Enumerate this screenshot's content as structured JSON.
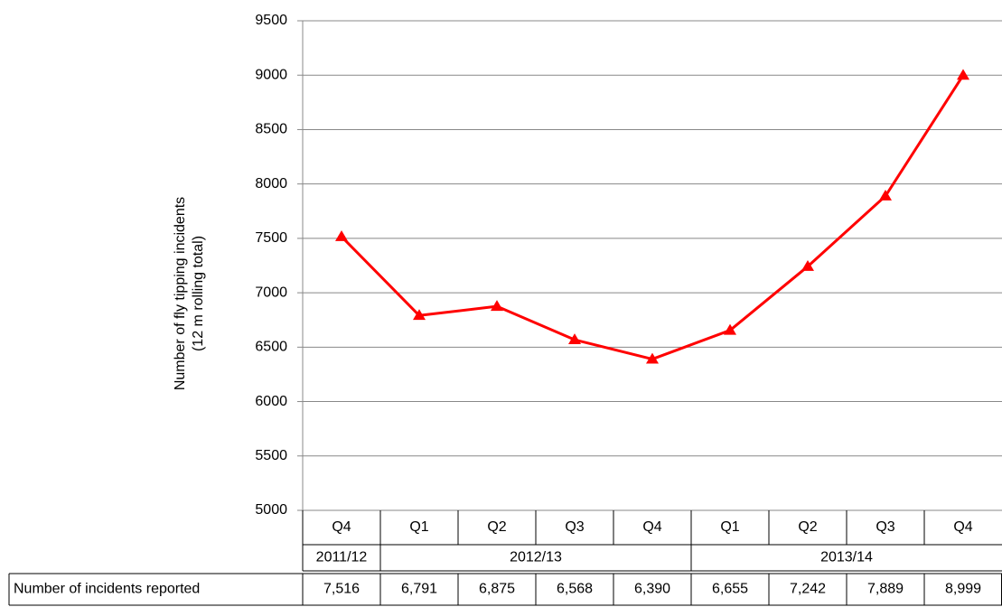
{
  "chart_data": {
    "type": "line",
    "y_label": [
      "Number of  fly tipping incidents",
      "(12 m rolling total)"
    ],
    "categories": [
      "Q4",
      "Q1",
      "Q2",
      "Q3",
      "Q4",
      "Q1",
      "Q2",
      "Q3",
      "Q4"
    ],
    "category_years": [
      "2011/12",
      "2012/13",
      null,
      null,
      null,
      "2013/14",
      null,
      null,
      null
    ],
    "series": [
      {
        "name": "Number of incidents reported",
        "color": "#ff0000",
        "values": [
          7516,
          6791,
          6875,
          6568,
          6390,
          6655,
          7242,
          7889,
          8999
        ],
        "value_labels": [
          "7,516",
          "6,791",
          "6,875",
          "6,568",
          "6,390",
          "6,655",
          "7,242",
          "7,889",
          "8,999"
        ]
      }
    ],
    "ylim": [
      5000,
      9500
    ],
    "yticks": [
      5000,
      5500,
      6000,
      6500,
      7000,
      7500,
      8000,
      8500,
      9000,
      9500
    ],
    "grid": true,
    "marker": "triangle"
  }
}
